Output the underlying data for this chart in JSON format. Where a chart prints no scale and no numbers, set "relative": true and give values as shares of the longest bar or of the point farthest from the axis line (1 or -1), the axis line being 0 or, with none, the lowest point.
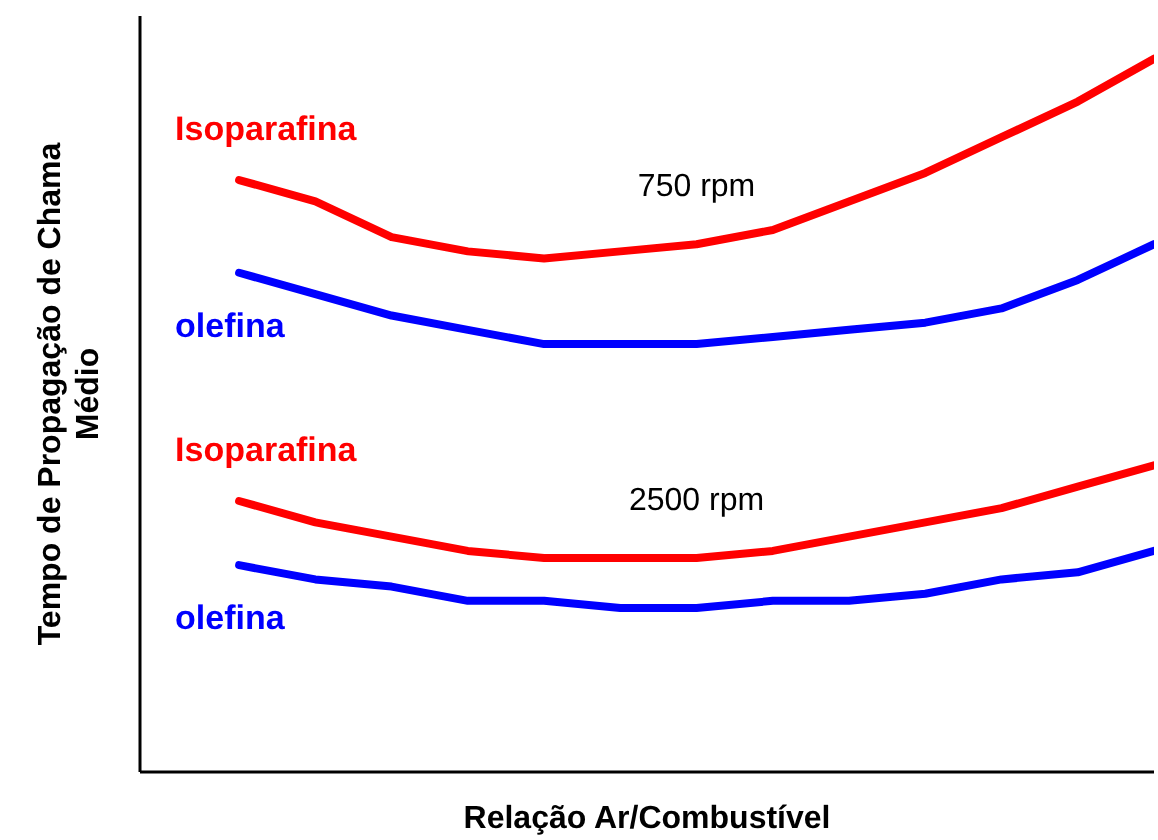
{
  "chart_data": {
    "type": "line",
    "relative": true,
    "xlabel": "Relação Ar/Combustível",
    "ylabel": "Tempo de Propagação de Chama Médio",
    "categories": [
      null,
      null,
      null,
      null,
      null,
      null,
      null,
      null,
      null,
      null,
      null,
      null,
      null
    ],
    "series": [
      {
        "name": "Isoparafina",
        "color": "#ff0000",
        "values": [
          0.83,
          0.8,
          0.75,
          0.73,
          0.72,
          0.73,
          0.74,
          0.76,
          0.8,
          0.84,
          0.89,
          0.94,
          1
        ]
      },
      {
        "name": "olefina",
        "color": "#0000ff",
        "values": [
          0.7,
          0.67,
          0.64,
          0.62,
          0.6,
          0.6,
          0.6,
          0.61,
          0.62,
          0.63,
          0.65,
          0.69,
          0.74
        ]
      },
      {
        "name": "Isoparafina",
        "color": "#ff0000",
        "values": [
          0.38,
          0.35,
          0.33,
          0.31,
          0.3,
          0.3,
          0.3,
          0.31,
          0.33,
          0.35,
          0.37,
          0.4,
          0.43
        ]
      },
      {
        "name": "olefina",
        "color": "#0000ff",
        "values": [
          0.29,
          0.27,
          0.26,
          0.24,
          0.24,
          0.23,
          0.23,
          0.24,
          0.24,
          0.25,
          0.27,
          0.28,
          0.31
        ]
      }
    ],
    "annotations": [
      "750 rpm",
      "2500 rpm"
    ],
    "grid": false,
    "legend": false,
    "marker": "none",
    "line_style": "solid"
  }
}
